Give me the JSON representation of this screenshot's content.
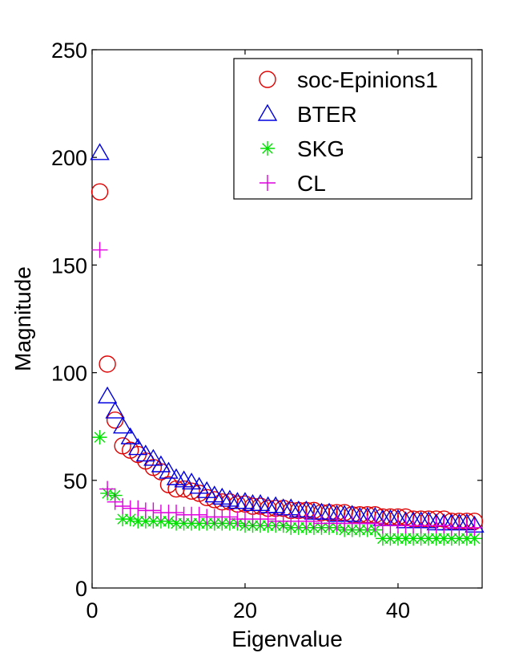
{
  "chart_data": {
    "type": "scatter",
    "title": "",
    "xlabel": "Eigenvalue",
    "ylabel": "Magnitude",
    "xlim": [
      0,
      51
    ],
    "ylim": [
      0,
      250
    ],
    "xticks": [
      0,
      20,
      40
    ],
    "yticks": [
      0,
      50,
      100,
      150,
      200,
      250
    ],
    "grid": false,
    "legend_position": "top-right",
    "series": [
      {
        "name": "soc-Epinions1",
        "marker": "circle",
        "color": "#e00000",
        "x": [
          1,
          2,
          3,
          4,
          5,
          6,
          7,
          8,
          9,
          10,
          11,
          12,
          13,
          14,
          15,
          16,
          17,
          18,
          19,
          20,
          21,
          22,
          23,
          24,
          25,
          26,
          27,
          28,
          29,
          30,
          31,
          32,
          33,
          34,
          35,
          36,
          37,
          38,
          39,
          40,
          41,
          42,
          43,
          44,
          45,
          46,
          47,
          48,
          49,
          50
        ],
        "values": [
          184,
          104,
          78,
          66,
          64,
          62,
          59,
          56,
          54,
          48,
          46,
          46,
          45,
          44,
          42,
          41,
          40,
          40,
          39,
          39,
          38,
          38,
          37,
          37,
          37,
          36,
          36,
          36,
          36,
          35,
          35,
          35,
          35,
          34,
          34,
          34,
          34,
          33,
          33,
          33,
          33,
          32,
          32,
          32,
          32,
          32,
          31,
          31,
          31,
          31
        ]
      },
      {
        "name": "BTER",
        "marker": "triangle",
        "color": "#0000e0",
        "x": [
          1,
          2,
          3,
          4,
          5,
          6,
          7,
          8,
          9,
          10,
          11,
          12,
          13,
          14,
          15,
          16,
          17,
          18,
          19,
          20,
          21,
          22,
          23,
          24,
          25,
          26,
          27,
          28,
          29,
          30,
          31,
          32,
          33,
          34,
          35,
          36,
          37,
          38,
          39,
          40,
          41,
          42,
          43,
          44,
          45,
          46,
          47,
          48,
          49,
          50
        ],
        "values": [
          202,
          89,
          82,
          75,
          70,
          65,
          62,
          60,
          57,
          54,
          51,
          50,
          49,
          47,
          45,
          43,
          42,
          41,
          40,
          40,
          39,
          39,
          38,
          38,
          37,
          37,
          36,
          36,
          35,
          35,
          35,
          34,
          34,
          34,
          33,
          33,
          33,
          32,
          32,
          32,
          31,
          31,
          31,
          31,
          30,
          30,
          30,
          30,
          30,
          29
        ]
      },
      {
        "name": "SKG",
        "marker": "asterisk",
        "color": "#00e000",
        "x": [
          1,
          2,
          3,
          4,
          5,
          6,
          7,
          8,
          9,
          10,
          11,
          12,
          13,
          14,
          15,
          16,
          17,
          18,
          19,
          20,
          21,
          22,
          23,
          24,
          25,
          26,
          27,
          28,
          29,
          30,
          31,
          32,
          33,
          34,
          35,
          36,
          37,
          38,
          39,
          40,
          41,
          42,
          43,
          44,
          45,
          46,
          47,
          48,
          49,
          50
        ],
        "values": [
          70,
          44,
          43,
          32,
          32,
          31,
          31,
          31,
          31,
          31,
          30,
          30,
          30,
          30,
          30,
          30,
          30,
          30,
          30,
          29,
          29,
          29,
          29,
          29,
          29,
          28,
          28,
          28,
          28,
          28,
          28,
          28,
          27,
          27,
          27,
          27,
          27,
          23,
          23,
          23,
          23,
          23,
          23,
          23,
          23,
          23,
          23,
          23,
          23,
          23
        ]
      },
      {
        "name": "CL",
        "marker": "plus",
        "color": "#e000e0",
        "x": [
          1,
          2,
          3,
          4,
          5,
          6,
          7,
          8,
          9,
          10,
          11,
          12,
          13,
          14,
          15,
          16,
          17,
          18,
          19,
          20,
          21,
          22,
          23,
          24,
          25,
          26,
          27,
          28,
          29,
          30,
          31,
          32,
          33,
          34,
          35,
          36,
          37,
          38,
          39,
          40,
          41,
          42,
          43,
          44,
          45,
          46,
          47,
          48,
          49,
          50
        ],
        "values": [
          157,
          46,
          40,
          38,
          37,
          37,
          36,
          36,
          35,
          35,
          35,
          34,
          34,
          34,
          33,
          33,
          33,
          33,
          32,
          32,
          32,
          32,
          32,
          31,
          31,
          31,
          31,
          31,
          31,
          30,
          30,
          30,
          30,
          30,
          30,
          30,
          30,
          29,
          29,
          29,
          29,
          29,
          29,
          29,
          29,
          29,
          28,
          28,
          28,
          28
        ]
      }
    ]
  }
}
